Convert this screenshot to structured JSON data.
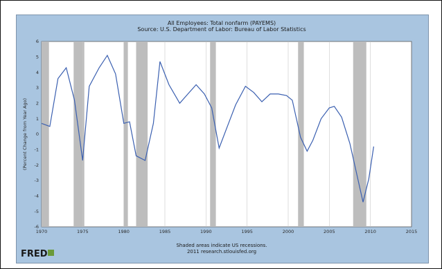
{
  "chart_data": {
    "type": "line",
    "title": "All Employees: Total nonfarm (PAYEMS)",
    "subtitle": "Source: U.S. Department of Labor: Bureau of Labor Statistics",
    "ylabel": "(Percent Change from Year Ago)",
    "xlabel": "",
    "xlim": [
      1970,
      2015
    ],
    "ylim": [
      -6,
      6
    ],
    "x_ticks": [
      1970,
      1975,
      1980,
      1985,
      1990,
      1995,
      2000,
      2005,
      2010,
      2015
    ],
    "y_ticks": [
      -6,
      -5,
      -4,
      -3,
      -2,
      -1,
      0,
      1,
      2,
      3,
      4,
      5,
      6
    ],
    "recessions": [
      [
        1969.9,
        1970.9
      ],
      [
        1973.9,
        1975.2
      ],
      [
        1980.0,
        1980.5
      ],
      [
        1981.5,
        1982.9
      ],
      [
        1990.5,
        1991.2
      ],
      [
        2001.2,
        2001.9
      ],
      [
        2007.9,
        2009.5
      ]
    ],
    "series": [
      {
        "x": [
          1970.0,
          1971.0,
          1972.0,
          1973.0,
          1974.0,
          1975.0,
          1975.8,
          1977.0,
          1978.0,
          1979.0,
          1980.0,
          1980.7,
          1981.5,
          1982.6,
          1983.6,
          1984.4,
          1985.5,
          1986.8,
          1987.8,
          1988.8,
          1989.8,
          1990.7,
          1991.6,
          1992.6,
          1993.6,
          1994.8,
          1995.8,
          1996.8,
          1997.8,
          1998.8,
          1999.8,
          2000.5,
          2001.5,
          2002.3,
          2003.0,
          2004.0,
          2005.0,
          2005.6,
          2006.5,
          2007.5,
          2008.3,
          2009.1,
          2009.8,
          2010.4
        ],
        "values": [
          0.7,
          0.5,
          3.6,
          4.3,
          2.2,
          -1.7,
          3.1,
          4.3,
          5.1,
          3.9,
          0.7,
          0.8,
          -1.4,
          -1.7,
          0.7,
          4.7,
          3.2,
          2.0,
          2.6,
          3.2,
          2.6,
          1.7,
          -0.9,
          0.5,
          1.9,
          3.1,
          2.7,
          2.1,
          2.6,
          2.6,
          2.5,
          2.2,
          -0.2,
          -1.1,
          -0.4,
          1.0,
          1.7,
          1.8,
          1.1,
          -0.6,
          -2.5,
          -4.4,
          -2.9,
          -0.8
        ]
      }
    ],
    "grid": "vertical",
    "footer": "Shaded areas indicate US recessions.",
    "footer2": "2011 research.stlouisfed.org",
    "logo": "FRED"
  }
}
